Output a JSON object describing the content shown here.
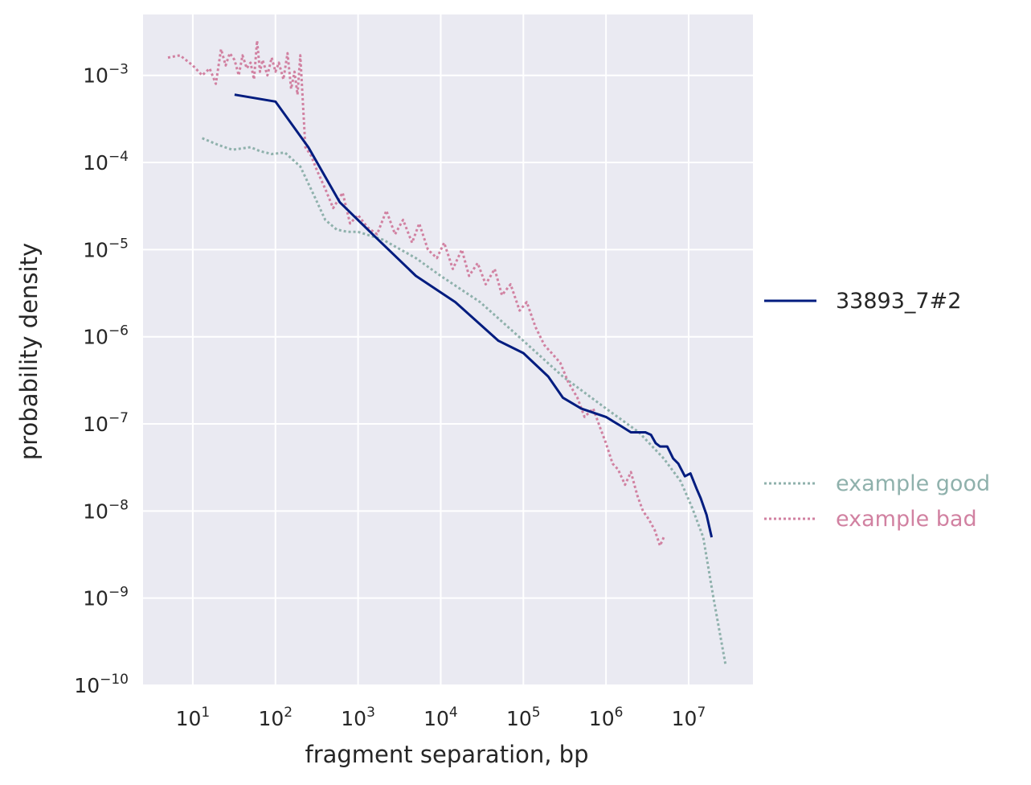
{
  "chart_data": {
    "type": "line",
    "xscale": "log",
    "yscale": "log",
    "xlabel": "fragment separation, bp",
    "ylabel": "probability density",
    "xlim": [
      2.5,
      60000000
    ],
    "ylim": [
      1e-10,
      0.005
    ],
    "grid": true,
    "background": "#eaeaf2",
    "legend_placement": "right",
    "x_ticks": [
      {
        "base": "10",
        "exp": "1",
        "value": 10
      },
      {
        "base": "10",
        "exp": "2",
        "value": 100
      },
      {
        "base": "10",
        "exp": "3",
        "value": 1000
      },
      {
        "base": "10",
        "exp": "4",
        "value": 10000
      },
      {
        "base": "10",
        "exp": "5",
        "value": 100000
      },
      {
        "base": "10",
        "exp": "6",
        "value": 1000000
      },
      {
        "base": "10",
        "exp": "7",
        "value": 10000000
      }
    ],
    "y_ticks": [
      {
        "base": "10",
        "exp": "−3",
        "value": 0.001
      },
      {
        "base": "10",
        "exp": "−4",
        "value": 0.0001
      },
      {
        "base": "10",
        "exp": "−5",
        "value": 1e-05
      },
      {
        "base": "10",
        "exp": "−6",
        "value": 1e-06
      },
      {
        "base": "10",
        "exp": "−7",
        "value": 1e-07
      },
      {
        "base": "10",
        "exp": "−8",
        "value": 1e-08
      },
      {
        "base": "10",
        "exp": "−9",
        "value": 1e-09
      },
      {
        "base": "10",
        "exp": "−10",
        "value": 1e-10
      }
    ],
    "series": [
      {
        "name": "33893_7#2",
        "color": "#001c7f",
        "style": "solid",
        "x": [
          32,
          100,
          250,
          600,
          1500,
          5000,
          15000,
          50000,
          100000,
          200000,
          300000,
          500000,
          1000000,
          1500000,
          2000000,
          3000000,
          3500000,
          4000000,
          4500000,
          5500000,
          6500000,
          7500000,
          9000000,
          10500000,
          12500000,
          14000000,
          16500000,
          19000000
        ],
        "values": [
          0.0006,
          0.0005,
          0.00015,
          3.5e-05,
          1.5e-05,
          5e-06,
          2.5e-06,
          9e-07,
          6.5e-07,
          3.5e-07,
          2e-07,
          1.5e-07,
          1.2e-07,
          9.5e-08,
          8e-08,
          8e-08,
          7.5e-08,
          6e-08,
          5.5e-08,
          5.5e-08,
          4e-08,
          3.5e-08,
          2.5e-08,
          2.7e-08,
          1.8e-08,
          1.4e-08,
          9e-09,
          5e-09
        ]
      },
      {
        "name": "example good",
        "color": "#8fb1ac",
        "style": "dotted",
        "x": [
          13,
          20,
          30,
          50,
          65,
          90,
          130,
          200,
          300,
          400,
          550,
          750,
          1000,
          2000,
          5000,
          10000,
          30000,
          100000,
          300000,
          1000000,
          2500000,
          5000000,
          8000000,
          11000000,
          15000000,
          20000000,
          28000000
        ],
        "values": [
          0.00019,
          0.00016,
          0.00014,
          0.00015,
          0.000135,
          0.000125,
          0.00013,
          9e-05,
          4e-05,
          2.2e-05,
          1.7e-05,
          1.6e-05,
          1.6e-05,
          1.3e-05,
          8e-06,
          5e-06,
          2.5e-06,
          9e-07,
          3.5e-07,
          1.5e-07,
          8e-08,
          4e-08,
          2.2e-08,
          1.1e-08,
          5e-09,
          1e-09,
          1.7e-10
        ]
      },
      {
        "name": "example bad",
        "color": "#d181a1",
        "style": "dotted",
        "x": [
          5,
          7,
          10,
          13,
          16,
          19,
          22,
          25,
          28,
          32,
          36,
          40,
          45,
          50,
          55,
          60,
          65,
          70,
          80,
          90,
          100,
          110,
          125,
          140,
          155,
          170,
          185,
          200,
          230,
          270,
          320,
          400,
          500,
          650,
          800,
          1000,
          1300,
          1700,
          2200,
          2800,
          3500,
          4500,
          5500,
          7000,
          9000,
          11000,
          14000,
          18000,
          22000,
          28000,
          35000,
          45000,
          55000,
          70000,
          90000,
          110000,
          140000,
          180000,
          220000,
          280000,
          350000,
          450000,
          550000,
          700000,
          850000,
          1000000,
          1200000,
          1400000,
          1700000,
          2000000,
          2400000,
          2800000,
          3300000,
          3900000,
          4500000,
          5000000
        ],
        "values": [
          0.0016,
          0.0017,
          0.0013,
          0.001,
          0.0012,
          0.0008,
          0.002,
          0.0013,
          0.0018,
          0.0015,
          0.001,
          0.0017,
          0.0012,
          0.0014,
          0.0009,
          0.0025,
          0.0011,
          0.0015,
          0.001,
          0.0016,
          0.0011,
          0.0014,
          0.0009,
          0.0018,
          0.0007,
          0.0011,
          0.0006,
          0.0017,
          0.00015,
          0.00012,
          8e-05,
          5e-05,
          3e-05,
          4.5e-05,
          2e-05,
          2.5e-05,
          1.8e-05,
          1.5e-05,
          2.8e-05,
          1.5e-05,
          2.2e-05,
          1.2e-05,
          2e-05,
          1e-05,
          8e-06,
          1.2e-05,
          6e-06,
          1e-05,
          5e-06,
          7e-06,
          4e-06,
          6e-06,
          3e-06,
          4e-06,
          2e-06,
          2.5e-06,
          1.3e-06,
          8e-07,
          6.5e-07,
          5e-07,
          3e-07,
          2e-07,
          1.2e-07,
          1.5e-07,
          9e-08,
          6e-08,
          3.5e-08,
          3e-08,
          2e-08,
          2.8e-08,
          1.5e-08,
          1e-08,
          8e-09,
          6e-09,
          4e-09,
          5e-09
        ]
      }
    ],
    "legend": {
      "entries": [
        "33893_7#2",
        "example good",
        "example bad"
      ]
    }
  }
}
